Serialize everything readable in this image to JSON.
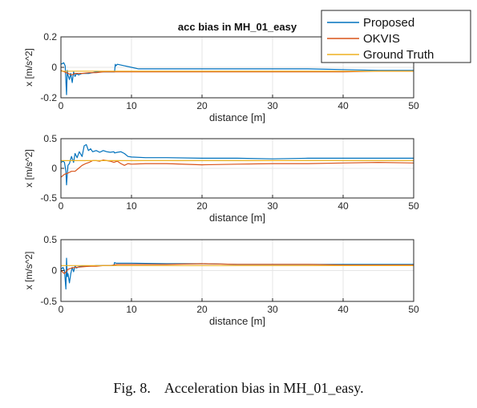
{
  "title": "acc bias in MH_01_easy",
  "caption": "Fig. 8.    Acceleration bias in MH_01_easy.",
  "legend": {
    "placement": "top-right",
    "entries": [
      {
        "name": "Proposed",
        "color": "#0072bd"
      },
      {
        "name": "OKVIS",
        "color": "#d95319"
      },
      {
        "name": "Ground Truth",
        "color": "#edb120"
      }
    ]
  },
  "chart_data": [
    {
      "type": "line",
      "title": "acc bias in MH_01_easy",
      "xlabel": "distance [m]",
      "ylabel": "x [m/s^2]",
      "xlim": [
        0,
        50
      ],
      "ylim": [
        -0.2,
        0.2
      ],
      "xticks": [
        0,
        10,
        20,
        30,
        40,
        50
      ],
      "yticks": [
        -0.2,
        0,
        0.2
      ],
      "xtick_labels": [
        "0",
        "10",
        "20",
        "30",
        "40",
        "50"
      ],
      "ytick_labels": [
        "-0.2",
        "0",
        "0.2"
      ],
      "grid": true,
      "series": [
        {
          "name": "Proposed",
          "color": "#0072bd",
          "x": [
            0,
            0.4,
            0.6,
            0.8,
            0.9,
            1.0,
            1.2,
            1.4,
            1.6,
            1.8,
            2.0,
            2.2,
            2.5,
            3,
            4,
            5,
            6,
            7,
            7.6,
            7.7,
            7.8,
            8,
            9,
            10,
            11,
            12,
            15,
            20,
            25,
            30,
            35,
            40,
            45,
            50
          ],
          "y": [
            0.02,
            0.03,
            0.01,
            -0.18,
            -0.02,
            -0.05,
            -0.08,
            -0.04,
            -0.1,
            -0.03,
            -0.06,
            -0.04,
            -0.05,
            -0.04,
            -0.04,
            -0.03,
            -0.03,
            -0.03,
            -0.03,
            0.02,
            0.01,
            0.02,
            0.01,
            0.0,
            -0.01,
            -0.01,
            -0.01,
            -0.01,
            -0.01,
            -0.01,
            -0.01,
            -0.015,
            -0.02,
            -0.02
          ]
        },
        {
          "name": "OKVIS",
          "color": "#d95319",
          "x": [
            0,
            0.5,
            1,
            1.5,
            2,
            3,
            4,
            5,
            6,
            7,
            8,
            10,
            15,
            20,
            25,
            30,
            35,
            40,
            45,
            50
          ],
          "y": [
            -0.02,
            -0.03,
            -0.04,
            -0.05,
            -0.04,
            -0.04,
            -0.035,
            -0.035,
            -0.03,
            -0.03,
            -0.03,
            -0.03,
            -0.03,
            -0.03,
            -0.03,
            -0.03,
            -0.03,
            -0.03,
            -0.025,
            -0.025
          ]
        },
        {
          "name": "Ground Truth",
          "color": "#edb120",
          "x": [
            0,
            50
          ],
          "y": [
            -0.025,
            -0.025
          ]
        }
      ]
    },
    {
      "type": "line",
      "title": "",
      "xlabel": "distance [m]",
      "ylabel": "x [m/s^2]",
      "xlim": [
        0,
        50
      ],
      "ylim": [
        -0.5,
        0.5
      ],
      "xticks": [
        0,
        10,
        20,
        30,
        40,
        50
      ],
      "yticks": [
        -0.5,
        0,
        0.5
      ],
      "xtick_labels": [
        "0",
        "10",
        "20",
        "30",
        "40",
        "50"
      ],
      "ytick_labels": [
        "-0.5",
        "0",
        "0.5"
      ],
      "grid": true,
      "series": [
        {
          "name": "Proposed",
          "color": "#0072bd",
          "x": [
            0,
            0.3,
            0.5,
            0.7,
            0.8,
            0.9,
            1.0,
            1.2,
            1.5,
            1.8,
            2.0,
            2.3,
            2.6,
            3.0,
            3.3,
            3.6,
            3.9,
            4.2,
            4.5,
            5,
            5.5,
            6,
            6.5,
            7,
            7.5,
            7.6,
            8,
            8.5,
            9,
            9.5,
            10,
            12,
            15,
            20,
            25,
            30,
            35,
            40,
            45,
            50
          ],
          "y": [
            0.1,
            0.12,
            0.1,
            -0.05,
            -0.28,
            -0.1,
            0.05,
            0.08,
            0.2,
            0.1,
            0.25,
            0.18,
            0.28,
            0.2,
            0.38,
            0.4,
            0.3,
            0.33,
            0.28,
            0.3,
            0.27,
            0.3,
            0.28,
            0.27,
            0.28,
            0.26,
            0.27,
            0.28,
            0.25,
            0.2,
            0.19,
            0.18,
            0.18,
            0.17,
            0.17,
            0.16,
            0.17,
            0.17,
            0.17,
            0.17
          ]
        },
        {
          "name": "OKVIS",
          "color": "#d95319",
          "x": [
            0,
            0.5,
            1,
            1.5,
            2,
            2.5,
            3,
            3.5,
            4,
            4.5,
            5,
            5.5,
            6,
            7,
            7.5,
            8,
            8.5,
            9,
            9.5,
            10,
            12,
            15,
            20,
            25,
            30,
            35,
            40,
            45,
            50
          ],
          "y": [
            -0.15,
            -0.1,
            -0.08,
            -0.05,
            -0.05,
            0.0,
            0.05,
            0.08,
            0.1,
            0.13,
            0.13,
            0.12,
            0.14,
            0.12,
            0.1,
            0.12,
            0.08,
            0.05,
            0.08,
            0.07,
            0.08,
            0.08,
            0.06,
            0.07,
            0.08,
            0.08,
            0.09,
            0.1,
            0.09
          ]
        },
        {
          "name": "Ground Truth",
          "color": "#edb120",
          "x": [
            0,
            50
          ],
          "y": [
            0.13,
            0.13
          ]
        }
      ]
    },
    {
      "type": "line",
      "title": "",
      "xlabel": "distance [m]",
      "ylabel": "x [m/s^2]",
      "xlim": [
        0,
        50
      ],
      "ylim": [
        -0.5,
        0.5
      ],
      "xticks": [
        0,
        10,
        20,
        30,
        40,
        50
      ],
      "yticks": [
        -0.5,
        0,
        0.5
      ],
      "xtick_labels": [
        "0",
        "10",
        "20",
        "30",
        "40",
        "50"
      ],
      "ytick_labels": [
        "-0.5",
        "0",
        "0.5"
      ],
      "grid": true,
      "series": [
        {
          "name": "Proposed",
          "color": "#0072bd",
          "x": [
            0,
            0.3,
            0.5,
            0.7,
            0.8,
            0.9,
            1.0,
            1.2,
            1.4,
            1.6,
            1.8,
            2.0,
            2.2,
            2.5,
            3,
            4,
            5,
            6,
            7,
            7.5,
            7.6,
            7.8,
            8,
            10,
            15,
            20,
            25,
            30,
            35,
            40,
            45,
            50
          ],
          "y": [
            0.02,
            0.05,
            0.0,
            -0.3,
            0.2,
            -0.1,
            -0.05,
            -0.2,
            -0.05,
            0.05,
            -0.02,
            0.07,
            0.04,
            0.06,
            0.07,
            0.07,
            0.08,
            0.08,
            0.08,
            0.08,
            0.13,
            0.12,
            0.12,
            0.12,
            0.11,
            0.11,
            0.1,
            0.1,
            0.1,
            0.1,
            0.1,
            0.1
          ]
        },
        {
          "name": "OKVIS",
          "color": "#d95319",
          "x": [
            0,
            0.5,
            1,
            1.5,
            2,
            3,
            4,
            5,
            6,
            7,
            8,
            10,
            15,
            20,
            25,
            30,
            35,
            40,
            45,
            50
          ],
          "y": [
            0.0,
            -0.05,
            0.02,
            0.04,
            0.05,
            0.06,
            0.07,
            0.07,
            0.08,
            0.08,
            0.1,
            0.1,
            0.1,
            0.11,
            0.1,
            0.1,
            0.1,
            0.09,
            0.09,
            0.09
          ]
        },
        {
          "name": "Ground Truth",
          "color": "#edb120",
          "x": [
            0,
            50
          ],
          "y": [
            0.08,
            0.08
          ]
        }
      ]
    }
  ]
}
